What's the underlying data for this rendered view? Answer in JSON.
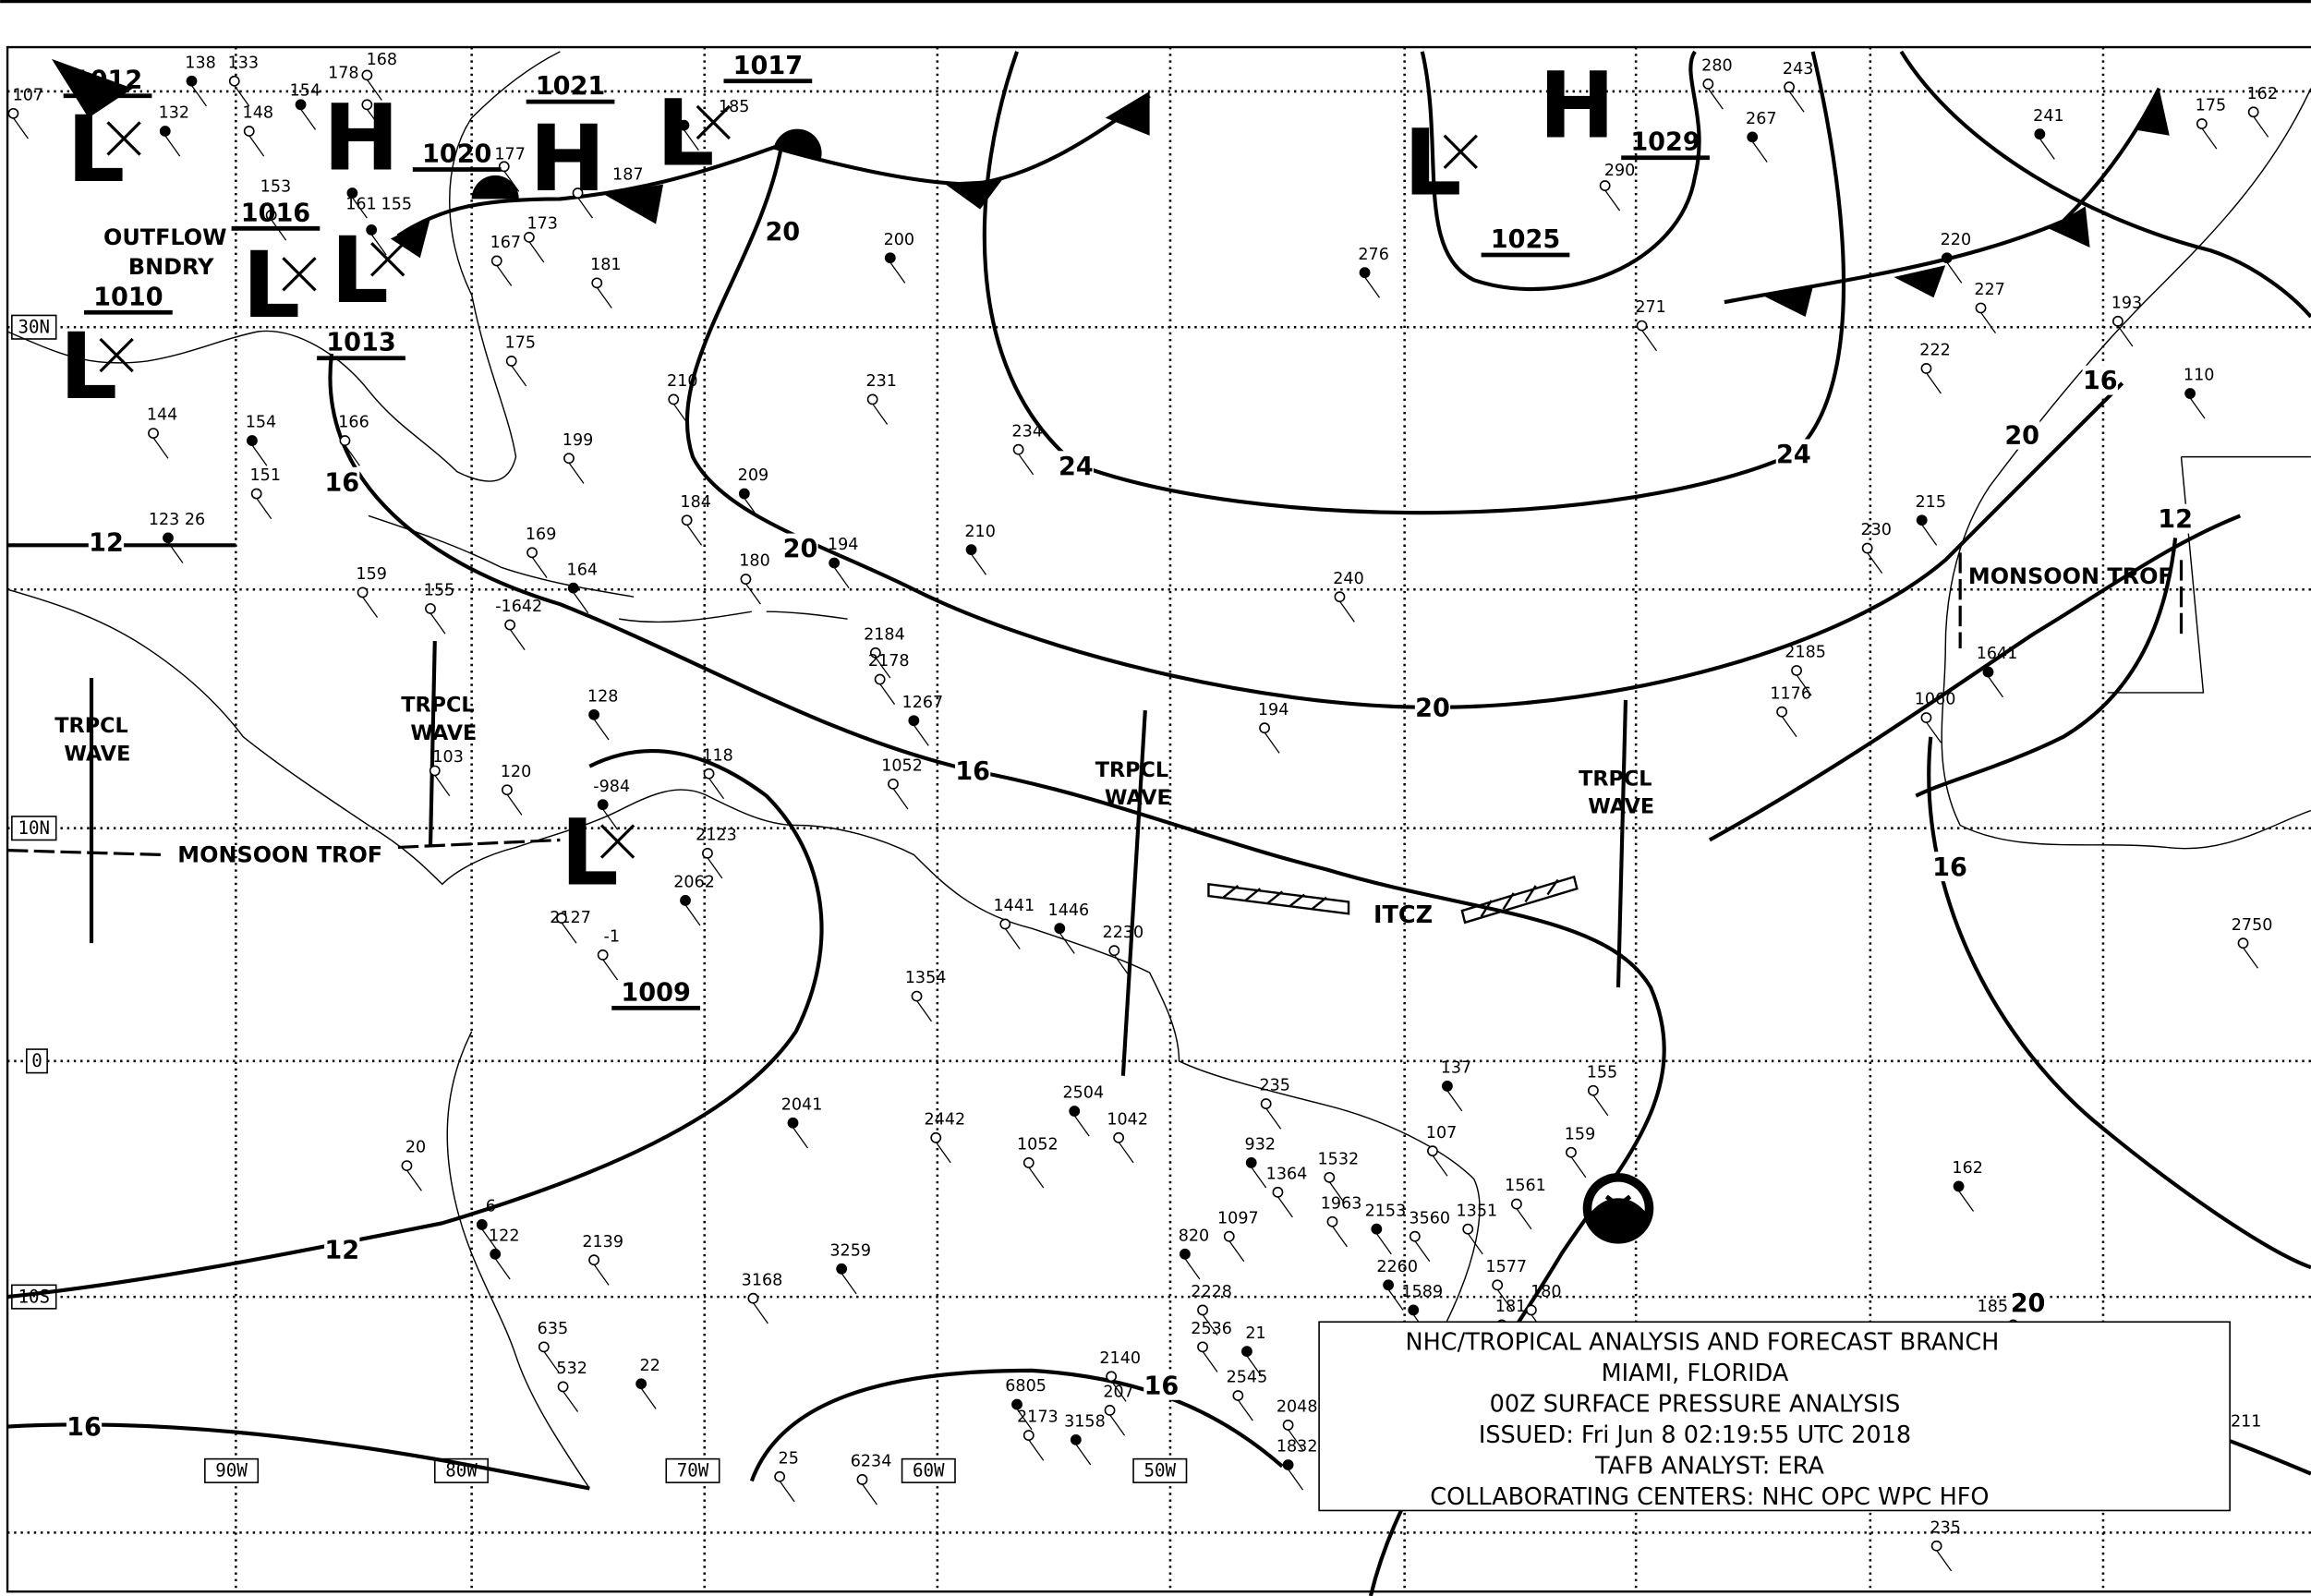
{
  "caption": {
    "lines": [
      "NHC/TROPICAL ANALYSIS AND FORECAST BRANCH",
      "MIAMI, FLORIDA",
      "00Z SURFACE PRESSURE ANALYSIS",
      "ISSUED: Fri Jun 8 02:19:55 UTC 2018",
      "TAFB ANALYST: ERA",
      "COLLABORATING CENTERS: NHC OPC WPC HFO"
    ]
  },
  "latitude_labels": [
    "30N",
    "10N",
    "0",
    "10S"
  ],
  "longitude_labels": [
    "90W",
    "80W",
    "70W",
    "60W",
    "50W"
  ],
  "pressure_centers": [
    {
      "type": "H",
      "pressure": "1020"
    },
    {
      "type": "H",
      "pressure": "1021"
    },
    {
      "type": "H",
      "pressure": "1029"
    },
    {
      "type": "L",
      "pressure": "1017"
    },
    {
      "type": "L",
      "pressure": "1013"
    },
    {
      "type": "L",
      "pressure": "1025"
    },
    {
      "type": "L",
      "pressure": "1009"
    },
    {
      "type": "L",
      "pressure": "1012"
    },
    {
      "type": "L",
      "pressure": "1016"
    },
    {
      "type": "L",
      "pressure": "1010"
    }
  ],
  "isobar_labels": [
    "20",
    "20",
    "20",
    "20",
    "20",
    "24",
    "24",
    "16",
    "16",
    "16",
    "16",
    "16",
    "16",
    "12",
    "12",
    "12"
  ],
  "features": {
    "outflow_boundary": [
      "OUTFLOW",
      "BNDRY"
    ],
    "tropical_waves": [
      [
        "TRPCL",
        "WAVE"
      ],
      [
        "TRPCL",
        "WAVE"
      ],
      [
        "TRPCL",
        "WAVE"
      ],
      [
        "TRPCL",
        "WAVE"
      ]
    ],
    "monsoon_trough": [
      "MONSOON TROF",
      "MONSOON TROF"
    ],
    "itcz": "ITCZ"
  },
  "station_values": [
    "138",
    "133",
    "107",
    "132",
    "168",
    "178",
    "154",
    "148",
    "153",
    "161",
    "177",
    "187",
    "185",
    "173",
    "167",
    "155",
    "181",
    "175",
    "200",
    "231",
    "210",
    "209",
    "184",
    "180",
    "194",
    "199",
    "166",
    "154",
    "151",
    "144",
    "123 26",
    "159",
    "169",
    "164",
    "155",
    "-1642",
    "128",
    "103",
    "120",
    "-984",
    "118",
    "2123",
    "2062",
    "2184",
    "2178",
    "1267",
    "1052",
    "234",
    "210",
    "240",
    "194",
    "276",
    "290",
    "271",
    "267",
    "280",
    "243",
    "241",
    "175",
    "162",
    "220",
    "227",
    "222",
    "215",
    "230",
    "193",
    "110",
    "2185",
    "1176",
    "1641",
    "1060",
    "2750",
    "137",
    "155",
    "159",
    "162",
    "185",
    "235",
    "211",
    "181",
    "180",
    "1589",
    "1577",
    "1561",
    "2041",
    "1052",
    "2442",
    "3259",
    "3168",
    "2139",
    "122",
    "635",
    "532",
    "22",
    "25",
    "6234",
    "6805",
    "2173",
    "207",
    "3158",
    "2140",
    "2048",
    "1832",
    "1364",
    "1097",
    "820",
    "2228",
    "2536",
    "21",
    "2545",
    "1441",
    "1446",
    "2230",
    "1354",
    "2504",
    "1042",
    "235",
    "932",
    "1532",
    "1963",
    "2153",
    "3560",
    "1351",
    "2260",
    "107",
    "20",
    "6",
    "-1",
    "2127"
  ],
  "colors": {
    "ink": "#000000",
    "background": "#ffffff"
  },
  "logo": {
    "name": "noaa-logo-icon"
  }
}
